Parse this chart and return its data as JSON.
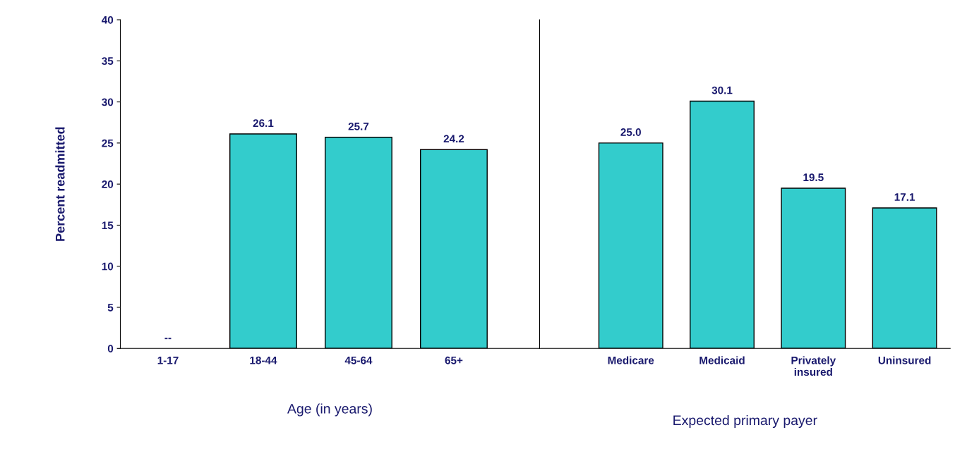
{
  "chart_data": [
    {
      "type": "bar",
      "xlabel": "Age (in years)",
      "ylabel": "Percent readmitted",
      "categories": [
        "1-17",
        "18-44",
        "45-64",
        "65+"
      ],
      "values": [
        null,
        26.1,
        25.7,
        24.2
      ],
      "value_labels": [
        "--",
        "26.1",
        "25.7",
        "24.2"
      ],
      "color": "#33cccc",
      "ylim": [
        0,
        40
      ],
      "yticks": [
        0,
        5,
        10,
        15,
        20,
        25,
        30,
        35,
        40
      ],
      "grid": false,
      "legend": false
    },
    {
      "type": "bar",
      "xlabel": "Expected primary payer",
      "categories": [
        "Medicare",
        "Medicaid",
        "Privately\ninsured",
        "Uninsured"
      ],
      "values": [
        25.0,
        30.1,
        19.5,
        17.1
      ],
      "value_labels": [
        "25.0",
        "30.1",
        "19.5",
        "17.1"
      ],
      "color": "#33cccc",
      "ylim": [
        0,
        40
      ],
      "yticks": [
        0,
        5,
        10,
        15,
        20,
        25,
        30,
        35,
        40
      ],
      "tick_labels": "x",
      "grid": false,
      "legend": false
    }
  ]
}
